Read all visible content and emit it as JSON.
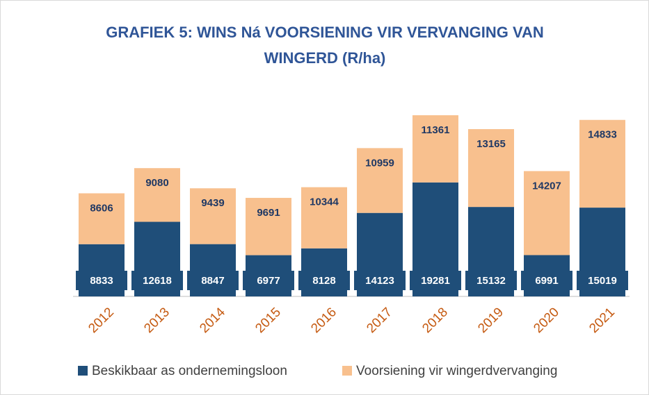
{
  "chart_data": {
    "type": "stacked_bar",
    "title": [
      "GRAFIEK 5: WINS Ná VOORSIENING VIR VERVANGING VAN",
      "WINGERD (R/ha)"
    ],
    "categories": [
      "2012",
      "2013",
      "2014",
      "2015",
      "2016",
      "2017",
      "2018",
      "2019",
      "2020",
      "2021"
    ],
    "series": [
      {
        "name": "Beskikbaar as ondernemingsloon",
        "color": "#1f4e79",
        "values": [
          8833,
          12618,
          8847,
          6977,
          8128,
          14123,
          19281,
          15132,
          6991,
          15019
        ]
      },
      {
        "name": "Voorsiening vir wingerdvervanging",
        "color": "#f8c08e",
        "values": [
          8606,
          9080,
          9439,
          9691,
          10344,
          10959,
          11361,
          13165,
          14207,
          14833
        ]
      }
    ],
    "legend": "bottom"
  }
}
